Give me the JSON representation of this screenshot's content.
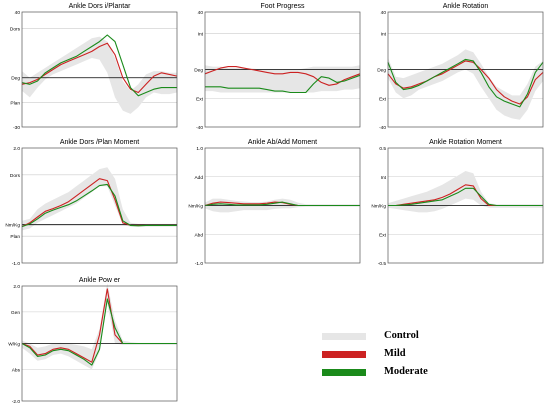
{
  "colors": {
    "control": "#e6e6e6",
    "mild": "#cc2222",
    "moderate": "#1a8a1a",
    "grid": "#cccccc",
    "axis": "#000000"
  },
  "legend": [
    {
      "key": "control",
      "label": "Control"
    },
    {
      "key": "mild",
      "label": "Mild"
    },
    {
      "key": "moderate",
      "label": "Moderate"
    }
  ],
  "chart_data": [
    {
      "type": "line",
      "title": "Ankle Dors i/Plantar",
      "ylim": [
        -30,
        40
      ],
      "zero": 0,
      "yticks": [
        {
          "v": 40,
          "label": "40"
        },
        {
          "v": 30,
          "label": "Dors"
        },
        {
          "v": 0,
          "label": "Deg"
        },
        {
          "v": -15,
          "label": "Plan"
        },
        {
          "v": -30,
          "label": "-30"
        }
      ],
      "x": [
        0,
        5,
        10,
        15,
        20,
        25,
        30,
        35,
        40,
        45,
        50,
        55,
        60,
        65,
        70,
        75,
        80,
        85,
        90,
        95,
        100
      ],
      "control_band": {
        "upper": [
          4,
          0,
          3,
          6,
          9,
          12,
          15,
          18,
          21,
          24,
          25,
          22,
          12,
          -2,
          -8,
          -4,
          2,
          4,
          4,
          3,
          3
        ],
        "lower": [
          -8,
          -12,
          -6,
          -1,
          2,
          4,
          6,
          8,
          10,
          12,
          11,
          3,
          -12,
          -20,
          -22,
          -18,
          -12,
          -9,
          -10,
          -10,
          -9
        ]
      },
      "series": [
        {
          "name": "Mild",
          "key": "mild",
          "values": [
            -4,
            -3,
            -1,
            2,
            5,
            8,
            10,
            12,
            14,
            16,
            19,
            21,
            14,
            0,
            -7,
            -9,
            -4,
            1,
            3,
            2,
            1
          ]
        },
        {
          "name": "Moderate",
          "key": "moderate",
          "values": [
            -3,
            -4,
            -2,
            3,
            6,
            9,
            11,
            13,
            16,
            19,
            22,
            26,
            22,
            8,
            -6,
            -11,
            -9,
            -7,
            -6,
            -6,
            -6
          ]
        }
      ]
    },
    {
      "type": "line",
      "title": "Foot Progress",
      "ylim": [
        -40,
        40
      ],
      "zero": 0,
      "yticks": [
        {
          "v": 40,
          "label": "40"
        },
        {
          "v": 25,
          "label": "Int"
        },
        {
          "v": 0,
          "label": "Deg"
        },
        {
          "v": -20,
          "label": "Ext"
        },
        {
          "v": -40,
          "label": "-40"
        }
      ],
      "x": [
        0,
        5,
        10,
        15,
        20,
        25,
        30,
        35,
        40,
        45,
        50,
        55,
        60,
        65,
        70,
        75,
        80,
        85,
        90,
        95,
        100
      ],
      "control_band": {
        "upper": [
          3,
          2,
          2,
          1,
          1,
          1,
          1,
          0,
          0,
          0,
          0,
          0,
          0,
          1,
          2,
          2,
          2,
          2,
          2,
          2,
          3
        ],
        "lower": [
          -15,
          -15,
          -16,
          -16,
          -16,
          -16,
          -16,
          -16,
          -16,
          -16,
          -16,
          -16,
          -16,
          -16,
          -16,
          -15,
          -15,
          -15,
          -14,
          -14,
          -13
        ]
      },
      "series": [
        {
          "name": "Mild",
          "key": "mild",
          "values": [
            -3,
            -1,
            1,
            2,
            2,
            1,
            0,
            -1,
            -2,
            -3,
            -3,
            -2,
            -2,
            -3,
            -5,
            -9,
            -11,
            -10,
            -7,
            -5,
            -3
          ]
        },
        {
          "name": "Moderate",
          "key": "moderate",
          "values": [
            -12,
            -12,
            -12,
            -13,
            -13,
            -13,
            -13,
            -13,
            -14,
            -15,
            -15,
            -16,
            -16,
            -16,
            -10,
            -5,
            -6,
            -9,
            -8,
            -6,
            -4
          ]
        }
      ]
    },
    {
      "type": "line",
      "title": "Ankle Rotation",
      "ylim": [
        -40,
        40
      ],
      "zero": 0,
      "yticks": [
        {
          "v": 40,
          "label": "40"
        },
        {
          "v": 25,
          "label": "Int"
        },
        {
          "v": 0,
          "label": "Deg"
        },
        {
          "v": -20,
          "label": "Ext"
        },
        {
          "v": -40,
          "label": "-40"
        }
      ],
      "x": [
        0,
        5,
        10,
        15,
        20,
        25,
        30,
        35,
        40,
        45,
        50,
        55,
        60,
        65,
        70,
        75,
        80,
        85,
        90,
        95,
        100
      ],
      "control_band": {
        "upper": [
          8,
          -5,
          -6,
          -4,
          -2,
          0,
          2,
          4,
          7,
          10,
          14,
          12,
          4,
          -5,
          -12,
          -15,
          -18,
          -18,
          -10,
          2,
          6
        ],
        "lower": [
          -6,
          -16,
          -20,
          -18,
          -14,
          -12,
          -10,
          -8,
          -5,
          -2,
          0,
          -3,
          -12,
          -20,
          -28,
          -32,
          -34,
          -35,
          -28,
          -15,
          -8
        ]
      },
      "series": [
        {
          "name": "Mild",
          "key": "mild",
          "values": [
            -3,
            -10,
            -13,
            -12,
            -10,
            -8,
            -5,
            -3,
            0,
            3,
            6,
            5,
            0,
            -6,
            -14,
            -19,
            -22,
            -24,
            -19,
            -7,
            -2
          ]
        },
        {
          "name": "Moderate",
          "key": "moderate",
          "values": [
            5,
            -9,
            -14,
            -13,
            -11,
            -8,
            -5,
            -2,
            1,
            4,
            7,
            6,
            -2,
            -12,
            -19,
            -22,
            -24,
            -26,
            -17,
            -2,
            5
          ]
        }
      ]
    },
    {
      "type": "line",
      "title": "Ankle Dors /Plan Moment",
      "ylim": [
        -1,
        2
      ],
      "zero": 0,
      "yticks": [
        {
          "v": 2,
          "label": "2.0"
        },
        {
          "v": 1.3,
          "label": "Dors"
        },
        {
          "v": 0,
          "label": "Nm/Kg"
        },
        {
          "v": -0.3,
          "label": "Plan"
        },
        {
          "v": -1,
          "label": "-1.0"
        }
      ],
      "x": [
        0,
        5,
        10,
        15,
        20,
        25,
        30,
        35,
        40,
        45,
        50,
        55,
        60,
        65,
        70,
        75,
        80,
        85,
        90,
        95,
        100
      ],
      "control_band": {
        "upper": [
          0.1,
          0.15,
          0.4,
          0.55,
          0.65,
          0.75,
          0.85,
          1.0,
          1.15,
          1.3,
          1.45,
          1.5,
          1.2,
          0.4,
          0.05,
          0.02,
          0.02,
          0.02,
          0.02,
          0.02,
          0.02
        ],
        "lower": [
          -0.15,
          -0.1,
          0.05,
          0.15,
          0.25,
          0.35,
          0.45,
          0.55,
          0.7,
          0.85,
          1.0,
          1.0,
          0.5,
          0.0,
          -0.05,
          -0.05,
          -0.05,
          -0.05,
          -0.05,
          -0.05,
          -0.05
        ]
      },
      "series": [
        {
          "name": "Mild",
          "key": "mild",
          "values": [
            -0.05,
            0.05,
            0.2,
            0.35,
            0.42,
            0.5,
            0.6,
            0.75,
            0.9,
            1.05,
            1.2,
            1.15,
            0.65,
            0.05,
            -0.02,
            -0.02,
            -0.02,
            -0.02,
            -0.02,
            -0.02,
            -0.02
          ]
        },
        {
          "name": "Moderate",
          "key": "moderate",
          "values": [
            -0.05,
            0.02,
            0.15,
            0.3,
            0.38,
            0.45,
            0.52,
            0.62,
            0.75,
            0.88,
            1.02,
            1.05,
            0.75,
            0.1,
            -0.02,
            -0.03,
            -0.02,
            -0.02,
            -0.02,
            -0.02,
            -0.02
          ]
        }
      ]
    },
    {
      "type": "line",
      "title": "Ankle Ab/Add Moment",
      "ylim": [
        -1,
        1
      ],
      "zero": 0,
      "yticks": [
        {
          "v": 1,
          "label": "1.0"
        },
        {
          "v": 0.5,
          "label": "Add"
        },
        {
          "v": 0,
          "label": "Nm/Kg"
        },
        {
          "v": -0.5,
          "label": "Abd"
        },
        {
          "v": -1,
          "label": "-1.0"
        }
      ],
      "x": [
        0,
        5,
        10,
        15,
        20,
        25,
        30,
        35,
        40,
        45,
        50,
        55,
        60,
        65,
        70,
        75,
        80,
        85,
        90,
        95,
        100
      ],
      "control_band": {
        "upper": [
          0.05,
          0.12,
          0.12,
          0.1,
          0.08,
          0.07,
          0.06,
          0.06,
          0.07,
          0.1,
          0.12,
          0.1,
          0.05,
          0.02,
          0.02,
          0.02,
          0.02,
          0.02,
          0.02,
          0.02,
          0.02
        ],
        "lower": [
          -0.05,
          -0.1,
          -0.12,
          -0.12,
          -0.1,
          -0.08,
          -0.08,
          -0.08,
          -0.08,
          -0.06,
          -0.05,
          -0.05,
          -0.03,
          -0.02,
          -0.02,
          -0.02,
          -0.02,
          -0.02,
          -0.02,
          -0.02,
          -0.02
        ]
      },
      "series": [
        {
          "name": "Mild",
          "key": "mild",
          "values": [
            0,
            0.04,
            0.06,
            0.05,
            0.04,
            0.03,
            0.03,
            0.03,
            0.04,
            0.06,
            0.05,
            0.02,
            0,
            0,
            0,
            0,
            0,
            0,
            0,
            0,
            0
          ]
        },
        {
          "name": "Moderate",
          "key": "moderate",
          "values": [
            0,
            0.02,
            0.03,
            0.02,
            0.01,
            0.01,
            0.01,
            0.01,
            0.02,
            0.04,
            0.06,
            0.03,
            0,
            0,
            0,
            0,
            0,
            0,
            0,
            0,
            0
          ]
        }
      ]
    },
    {
      "type": "line",
      "title": "Ankle Rotation Moment",
      "ylim": [
        -0.5,
        0.5
      ],
      "zero": 0,
      "yticks": [
        {
          "v": 0.5,
          "label": "0.5"
        },
        {
          "v": 0.25,
          "label": "Int"
        },
        {
          "v": 0,
          "label": "Nm/Kg"
        },
        {
          "v": -0.25,
          "label": "Ext"
        },
        {
          "v": -0.5,
          "label": "-0.5"
        }
      ],
      "x": [
        0,
        5,
        10,
        15,
        20,
        25,
        30,
        35,
        40,
        45,
        50,
        55,
        60,
        65,
        70,
        75,
        80,
        85,
        90,
        95,
        100
      ],
      "control_band": {
        "upper": [
          0.02,
          0.04,
          0.06,
          0.08,
          0.1,
          0.12,
          0.15,
          0.18,
          0.22,
          0.26,
          0.3,
          0.28,
          0.12,
          0.02,
          0.01,
          0.01,
          0.01,
          0.01,
          0.01,
          0.01,
          0.01
        ],
        "lower": [
          -0.02,
          -0.03,
          -0.04,
          -0.05,
          -0.06,
          -0.06,
          -0.05,
          -0.03,
          0.0,
          0.03,
          0.06,
          0.05,
          0.0,
          -0.02,
          -0.02,
          -0.02,
          -0.02,
          -0.02,
          -0.02,
          -0.02,
          -0.02
        ]
      },
      "series": [
        {
          "name": "Mild",
          "key": "mild",
          "values": [
            0,
            0,
            0.01,
            0.02,
            0.03,
            0.04,
            0.05,
            0.07,
            0.1,
            0.14,
            0.18,
            0.17,
            0.06,
            0.0,
            0,
            0,
            0,
            0,
            0,
            0,
            0
          ]
        },
        {
          "name": "Moderate",
          "key": "moderate",
          "values": [
            0,
            0,
            0.005,
            0.01,
            0.02,
            0.03,
            0.04,
            0.05,
            0.08,
            0.11,
            0.15,
            0.15,
            0.08,
            0.01,
            0,
            0,
            0,
            0,
            0,
            0,
            0
          ]
        }
      ]
    },
    {
      "type": "line",
      "title": "Ankle Pow er",
      "ylim": [
        -2,
        2
      ],
      "zero": 0,
      "yticks": [
        {
          "v": 2,
          "label": "2.0"
        },
        {
          "v": 1.1,
          "label": "Gen"
        },
        {
          "v": 0,
          "label": "W/Kg"
        },
        {
          "v": -0.9,
          "label": "Abs"
        },
        {
          "v": -2,
          "label": "-2.0"
        }
      ],
      "x": [
        0,
        5,
        10,
        15,
        20,
        25,
        30,
        35,
        40,
        45,
        50,
        55,
        60,
        65,
        70,
        75,
        80,
        85,
        90,
        95,
        100
      ],
      "control_band": {
        "upper": [
          0.1,
          0.0,
          -0.15,
          -0.1,
          0.0,
          0.02,
          0.0,
          -0.05,
          -0.1,
          -0.2,
          0.5,
          2.1,
          0.8,
          0.1,
          0.05,
          0.02,
          0.02,
          0.02,
          0.02,
          0.02,
          0.02
        ],
        "lower": [
          -0.15,
          -0.35,
          -0.6,
          -0.55,
          -0.4,
          -0.35,
          -0.45,
          -0.6,
          -0.75,
          -0.9,
          -0.3,
          1.4,
          0.0,
          -0.05,
          -0.05,
          -0.05,
          -0.05,
          -0.05,
          -0.05,
          -0.05,
          -0.05
        ]
      },
      "series": [
        {
          "name": "Mild",
          "key": "mild",
          "values": [
            0,
            -0.1,
            -0.4,
            -0.35,
            -0.2,
            -0.15,
            -0.2,
            -0.35,
            -0.5,
            -0.65,
            0.3,
            1.9,
            0.3,
            0.0,
            0,
            0,
            0,
            0,
            0,
            0,
            0
          ]
        },
        {
          "name": "Moderate",
          "key": "moderate",
          "values": [
            0,
            -0.15,
            -0.45,
            -0.4,
            -0.25,
            -0.2,
            -0.25,
            -0.4,
            -0.55,
            -0.75,
            -0.2,
            1.55,
            0.55,
            0.0,
            0,
            0,
            0,
            0,
            0,
            0,
            0
          ]
        }
      ]
    }
  ]
}
